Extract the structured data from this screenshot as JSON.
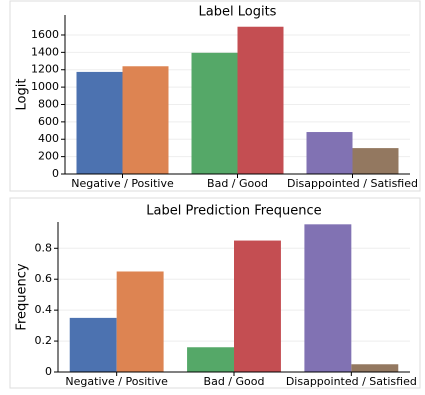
{
  "chart_data": [
    {
      "type": "bar",
      "title": "Label Logits",
      "ylabel": "Logit",
      "categories": [
        "Negative / Positive",
        "Bad / Good",
        "Disappointed / Satisfied"
      ],
      "values": [
        [
          1175,
          1240
        ],
        [
          1395,
          1695
        ],
        [
          483,
          298
        ]
      ],
      "colors": [
        [
          "#4c72b0",
          "#dd8452"
        ],
        [
          "#55a868",
          "#c44e52"
        ],
        [
          "#8172b3",
          "#937860"
        ]
      ],
      "ylim": [
        0,
        1830
      ],
      "yticks": [
        0,
        200,
        400,
        600,
        800,
        1000,
        1200,
        1400,
        1600
      ],
      "grid": true
    },
    {
      "type": "bar",
      "title": "Label Prediction Frequence",
      "ylabel": "Frequency",
      "categories": [
        "Negative / Positive",
        "Bad / Good",
        "Disappointed / Satisfied"
      ],
      "values": [
        [
          0.35,
          0.65
        ],
        [
          0.16,
          0.85
        ],
        [
          0.955,
          0.05
        ]
      ],
      "colors": [
        [
          "#4c72b0",
          "#dd8452"
        ],
        [
          "#55a868",
          "#c44e52"
        ],
        [
          "#8172b3",
          "#937860"
        ]
      ],
      "ylim": [
        0,
        0.97
      ],
      "yticks": [
        0.0,
        0.2,
        0.4,
        0.6,
        0.8
      ],
      "grid": true
    }
  ]
}
